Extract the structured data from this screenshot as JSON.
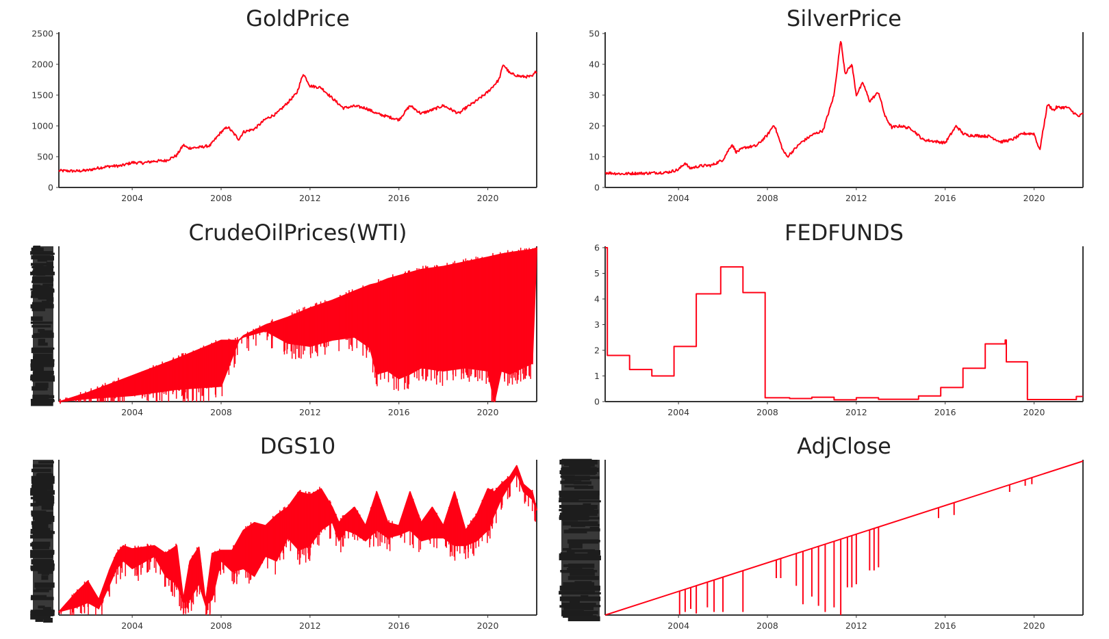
{
  "colors": {
    "series": "#ff0015",
    "axis": "#333333",
    "text": "#222222",
    "clutter": "#1e1e1e"
  },
  "chart_data": [
    {
      "type": "line",
      "title": "GoldPrice",
      "xlabel": "",
      "ylabel": "",
      "xlim": [
        2000.7,
        2022.2
      ],
      "ylim": [
        0,
        2500
      ],
      "xticks": [
        2004,
        2008,
        2012,
        2016,
        2020
      ],
      "yticks": [
        0,
        500,
        1000,
        1500,
        2000,
        2500
      ],
      "grid": false,
      "series": [
        {
          "x": [
            2000.7,
            2001.5,
            2002,
            2002.5,
            2003,
            2003.5,
            2004,
            2004.5,
            2005,
            2005.5,
            2006,
            2006.3,
            2006.5,
            2007,
            2007.5,
            2008,
            2008.3,
            2008.8,
            2009,
            2009.5,
            2010,
            2010.5,
            2011,
            2011.4,
            2011.7,
            2012,
            2012.5,
            2013,
            2013.5,
            2014,
            2014.5,
            2015,
            2015.5,
            2016,
            2016.5,
            2017,
            2017.5,
            2018,
            2018.7,
            2019,
            2019.5,
            2020,
            2020.5,
            2020.7,
            2021,
            2021.5,
            2022,
            2022.2
          ],
          "y": [
            272,
            266,
            278,
            318,
            345,
            352,
            405,
            398,
            428,
            435,
            520,
            690,
            640,
            650,
            680,
            900,
            985,
            780,
            900,
            950,
            1110,
            1200,
            1380,
            1530,
            1850,
            1650,
            1620,
            1450,
            1290,
            1320,
            1290,
            1200,
            1150,
            1100,
            1330,
            1200,
            1260,
            1330,
            1200,
            1290,
            1410,
            1550,
            1750,
            2000,
            1850,
            1800,
            1800,
            1900
          ]
        }
      ]
    },
    {
      "type": "line",
      "title": "SilverPrice",
      "xlabel": "",
      "ylabel": "",
      "xlim": [
        2000.7,
        2022.2
      ],
      "ylim": [
        0,
        50
      ],
      "xticks": [
        2004,
        2008,
        2012,
        2016,
        2020
      ],
      "yticks": [
        0,
        10,
        20,
        30,
        40,
        50
      ],
      "grid": false,
      "series": [
        {
          "x": [
            2000.7,
            2001.5,
            2002,
            2002.5,
            2003,
            2003.5,
            2004,
            2004.3,
            2004.5,
            2005,
            2005.5,
            2006,
            2006.4,
            2006.6,
            2007,
            2007.5,
            2008,
            2008.3,
            2008.7,
            2008.9,
            2009.5,
            2010,
            2010.5,
            2011,
            2011.3,
            2011.5,
            2011.8,
            2012,
            2012.3,
            2012.6,
            2013,
            2013.3,
            2013.6,
            2014,
            2014.5,
            2015,
            2015.5,
            2016,
            2016.5,
            2016.8,
            2017,
            2017.5,
            2018,
            2018.5,
            2019,
            2019.5,
            2020,
            2020.25,
            2020.6,
            2020.9,
            2021,
            2021.5,
            2022,
            2022.2
          ],
          "y": [
            4.8,
            4.4,
            4.6,
            4.6,
            4.8,
            4.9,
            5.8,
            8,
            6.2,
            7,
            7.2,
            9,
            14,
            11.5,
            13,
            13.5,
            17,
            20.5,
            12,
            10,
            14.5,
            17,
            18.5,
            30,
            48,
            37,
            40,
            30,
            34,
            28,
            31,
            23,
            19.5,
            20,
            19,
            15.5,
            15,
            14.5,
            20,
            17.5,
            17,
            16.8,
            16.6,
            14.8,
            15.5,
            17.5,
            17.5,
            12,
            27,
            25,
            26,
            26,
            23,
            24
          ]
        }
      ]
    },
    {
      "type": "line",
      "title": "CrudeOilPrices(WTI)",
      "xlabel": "",
      "ylabel": "",
      "xlim": [
        2000.7,
        2022.2
      ],
      "ylim": [
        0,
        100
      ],
      "xticks": [
        2004,
        2008,
        2012,
        2016,
        2020
      ],
      "grid": false,
      "series": [
        {
          "x": [
            2000.7,
            2002,
            2004,
            2006,
            2008,
            2008.8,
            2009,
            2010,
            2011,
            2012,
            2013,
            2014,
            2014.7,
            2015,
            2015.5,
            2016,
            2016.5,
            2017,
            2018,
            2019,
            2020,
            2020.3,
            2020.6,
            2021,
            2022,
            2022.2
          ],
          "y": [
            0,
            2,
            4,
            8,
            10,
            40,
            42,
            46,
            38,
            36,
            40,
            42,
            35,
            18,
            20,
            15,
            18,
            22,
            20,
            22,
            20,
            0,
            20,
            18,
            25,
            100
          ],
          "upper_envelope_y": [
            0,
            6,
            17,
            28,
            40,
            40,
            43,
            50,
            55,
            61,
            66,
            72,
            76,
            77,
            80,
            82,
            84,
            86,
            88,
            91,
            94,
            95,
            96,
            97,
            99,
            100
          ]
        }
      ]
    },
    {
      "type": "line",
      "title": "FEDFUNDS",
      "xlabel": "",
      "ylabel": "",
      "xlim": [
        2000.7,
        2022.2
      ],
      "ylim": [
        0,
        6
      ],
      "xticks": [
        2004,
        2008,
        2012,
        2016,
        2020
      ],
      "yticks": [
        0,
        1,
        2,
        3,
        4,
        5,
        6
      ],
      "grid": false,
      "series": [
        {
          "x": [
            2000.7,
            2000.8,
            2000.8,
            2001.8,
            2001.8,
            2002.8,
            2002.8,
            2003.8,
            2003.8,
            2004.8,
            2004.8,
            2005.9,
            2005.9,
            2006.9,
            2006.9,
            2007.9,
            2007.9,
            2009,
            2009,
            2010,
            2010,
            2011,
            2011,
            2012,
            2012,
            2013,
            2013,
            2014.8,
            2014.8,
            2015.8,
            2015.8,
            2016.8,
            2016.8,
            2017.8,
            2017.8,
            2018.7,
            2018.7,
            2018.75,
            2018.75,
            2019.7,
            2019.7,
            2021.9,
            2021.9,
            2022.2
          ],
          "y": [
            6,
            6,
            1.8,
            1.8,
            1.25,
            1.25,
            1.0,
            1.0,
            2.15,
            2.15,
            4.2,
            4.2,
            5.25,
            5.25,
            4.25,
            4.25,
            0.15,
            0.15,
            0.12,
            0.12,
            0.17,
            0.17,
            0.07,
            0.07,
            0.15,
            0.15,
            0.09,
            0.09,
            0.22,
            0.22,
            0.55,
            0.55,
            1.3,
            1.3,
            2.25,
            2.25,
            2.4,
            2.4,
            1.55,
            1.55,
            0.08,
            0.08,
            0.2,
            0.2
          ]
        }
      ]
    },
    {
      "type": "line",
      "title": "DGS10",
      "xlabel": "",
      "ylabel": "",
      "xlim": [
        2000.7,
        2022.2
      ],
      "ylim": [
        0,
        100
      ],
      "xticks": [
        2004,
        2008,
        2012,
        2016,
        2020
      ],
      "grid": false,
      "series": [
        {
          "x": [
            2000.7,
            2001.5,
            2002,
            2002.5,
            2003,
            2003.3,
            2003.6,
            2004,
            2004.5,
            2005,
            2005.5,
            2006,
            2006.3,
            2006.6,
            2007,
            2007.3,
            2007.6,
            2008,
            2008.5,
            2009,
            2009.5,
            2010,
            2010.5,
            2011,
            2011.5,
            2012,
            2012.5,
            2013,
            2013.3,
            2013.6,
            2014,
            2014.5,
            2015,
            2015.5,
            2016,
            2016.5,
            2017,
            2017.5,
            2018,
            2018.5,
            2019,
            2019.5,
            2020,
            2020.3,
            2020.6,
            2021,
            2021.3,
            2021.6,
            2022,
            2022.2
          ],
          "y": [
            2,
            15,
            22,
            10,
            30,
            40,
            45,
            43,
            44,
            45,
            40,
            45,
            10,
            35,
            44,
            8,
            40,
            42,
            42,
            55,
            60,
            58,
            65,
            70,
            80,
            78,
            82,
            70,
            60,
            65,
            70,
            58,
            80,
            60,
            58,
            80,
            60,
            70,
            58,
            80,
            55,
            65,
            82,
            80,
            85,
            90,
            97,
            85,
            80,
            68
          ],
          "lower_envelope_y": [
            2,
            5,
            8,
            4,
            20,
            30,
            35,
            30,
            34,
            38,
            25,
            20,
            8,
            10,
            20,
            6,
            10,
            35,
            28,
            30,
            25,
            38,
            35,
            50,
            42,
            45,
            55,
            60,
            48,
            55,
            53,
            48,
            55,
            50,
            52,
            55,
            48,
            50,
            50,
            45,
            45,
            48,
            55,
            65,
            75,
            85,
            92,
            80,
            75,
            68
          ]
        }
      ]
    },
    {
      "type": "line",
      "title": "AdjClose",
      "xlabel": "",
      "ylabel": "",
      "xlim": [
        2000.7,
        2022.2
      ],
      "ylim": [
        0,
        100
      ],
      "xticks": [
        2004,
        2008,
        2012,
        2016,
        2020
      ],
      "grid": false,
      "series": [
        {
          "x": [
            2000.7,
            2022.2
          ],
          "y": [
            0,
            100
          ],
          "spikes": [
            {
              "x": 2004.05,
              "low": 0.5
            },
            {
              "x": 2004.3,
              "low": 2
            },
            {
              "x": 2004.55,
              "low": 4
            },
            {
              "x": 2004.8,
              "low": 1
            },
            {
              "x": 2005.3,
              "low": 5
            },
            {
              "x": 2005.6,
              "low": 2
            },
            {
              "x": 2006.0,
              "low": 2
            },
            {
              "x": 2006.9,
              "low": 2
            },
            {
              "x": 2008.4,
              "low": 24
            },
            {
              "x": 2008.6,
              "low": 24
            },
            {
              "x": 2009.3,
              "low": 19
            },
            {
              "x": 2009.6,
              "low": 7
            },
            {
              "x": 2010.0,
              "low": 12
            },
            {
              "x": 2010.3,
              "low": 6
            },
            {
              "x": 2010.6,
              "low": 2
            },
            {
              "x": 2011.0,
              "low": 5
            },
            {
              "x": 2011.3,
              "low": 0
            },
            {
              "x": 2011.6,
              "low": 18
            },
            {
              "x": 2011.8,
              "low": 18
            },
            {
              "x": 2012.0,
              "low": 20
            },
            {
              "x": 2012.6,
              "low": 29
            },
            {
              "x": 2012.8,
              "low": 29
            },
            {
              "x": 2013.0,
              "low": 31
            },
            {
              "x": 2015.7,
              "low": 63
            },
            {
              "x": 2016.4,
              "low": 65
            },
            {
              "x": 2018.9,
              "low": 80
            },
            {
              "x": 2019.6,
              "low": 84
            },
            {
              "x": 2019.9,
              "low": 85
            }
          ]
        }
      ]
    }
  ]
}
